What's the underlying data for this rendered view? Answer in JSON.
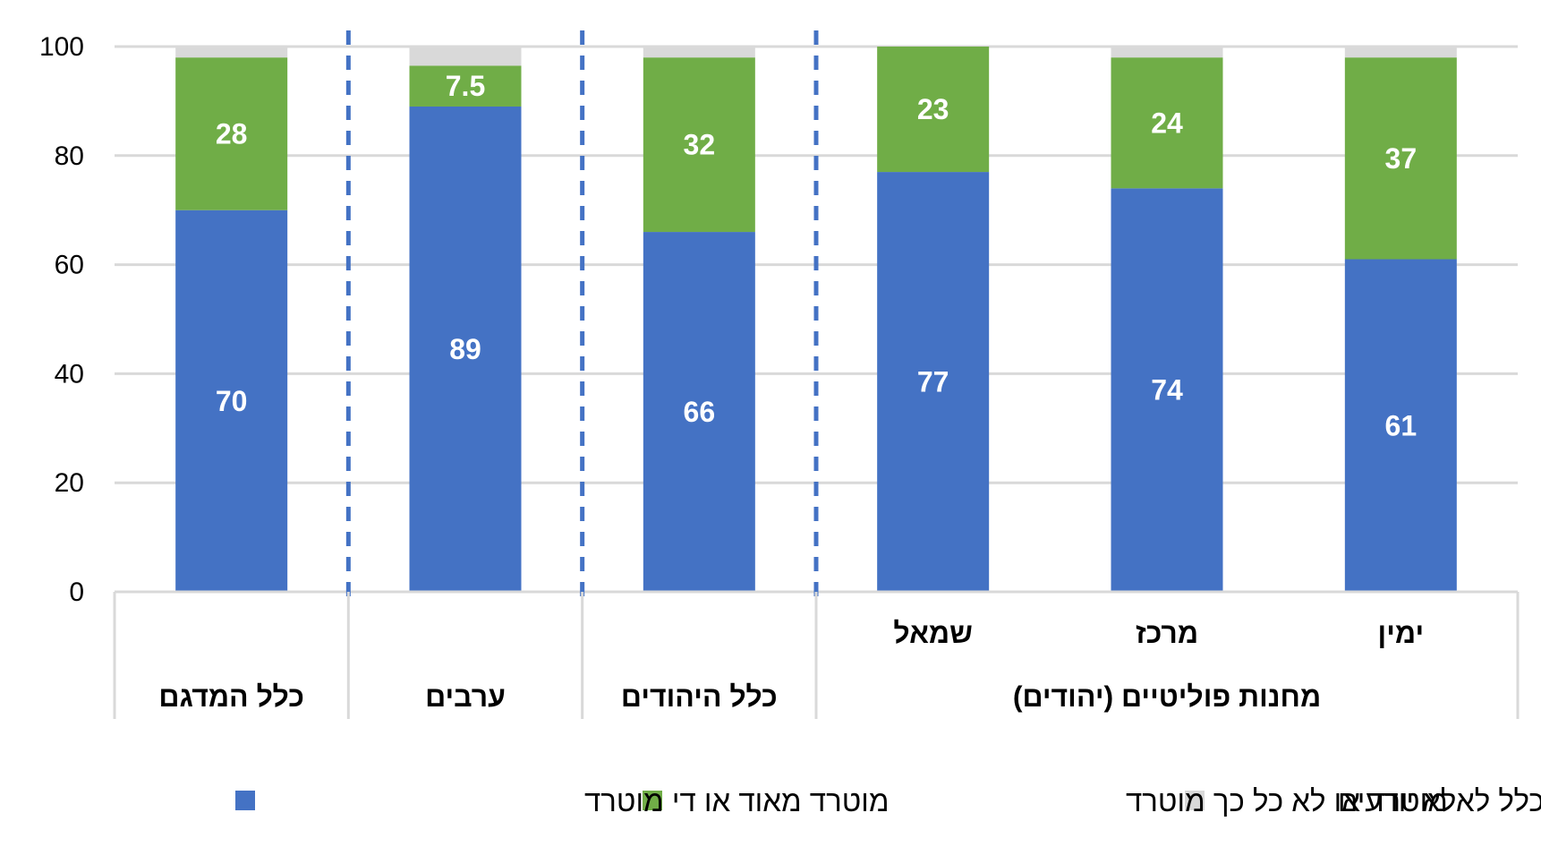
{
  "chart_data": {
    "type": "bar",
    "stacked": true,
    "categories": [
      "ימין",
      "מרכז",
      "שמאל",
      "כלל היהודים",
      "ערבים",
      "כלל המדגם"
    ],
    "series": [
      {
        "name": "מוטרד מאוד או די מוטרד",
        "color": "#4472C4",
        "values": [
          61,
          74,
          77,
          66,
          89,
          70
        ]
      },
      {
        "name": "בכלל לא מוטרד או לא כל כך מוטרד",
        "color": "#70AD47",
        "values": [
          37,
          24,
          23,
          32,
          7.5,
          28
        ]
      },
      {
        "name": "לא יודעים",
        "color": "#D9D9D9",
        "values": [
          2,
          2,
          0,
          2,
          3.5,
          2
        ]
      }
    ],
    "data_labels": [
      [
        "61",
        "74",
        "77",
        "66",
        "89",
        "70"
      ],
      [
        "37",
        "24",
        "23",
        "32",
        "7.5",
        "28"
      ]
    ],
    "group_label": "מחנות פוליטיים (יהודים)",
    "group_members": [
      "ימין",
      "מרכז",
      "שמאל"
    ],
    "ylim": [
      0,
      100
    ],
    "yticks": [
      "0",
      "20",
      "40",
      "60",
      "80",
      "100"
    ],
    "grid": true,
    "gridline_color": "#D9D9D9",
    "separator_color": "#4472C4",
    "legend_position": "bottom",
    "legend_order": [
      "לא יודעים",
      "בכלל לא מוטרד או לא כל כך מוטרד",
      "מוטרד מאוד או די מוטרד"
    ],
    "title": "",
    "xlabel": "",
    "ylabel": ""
  }
}
